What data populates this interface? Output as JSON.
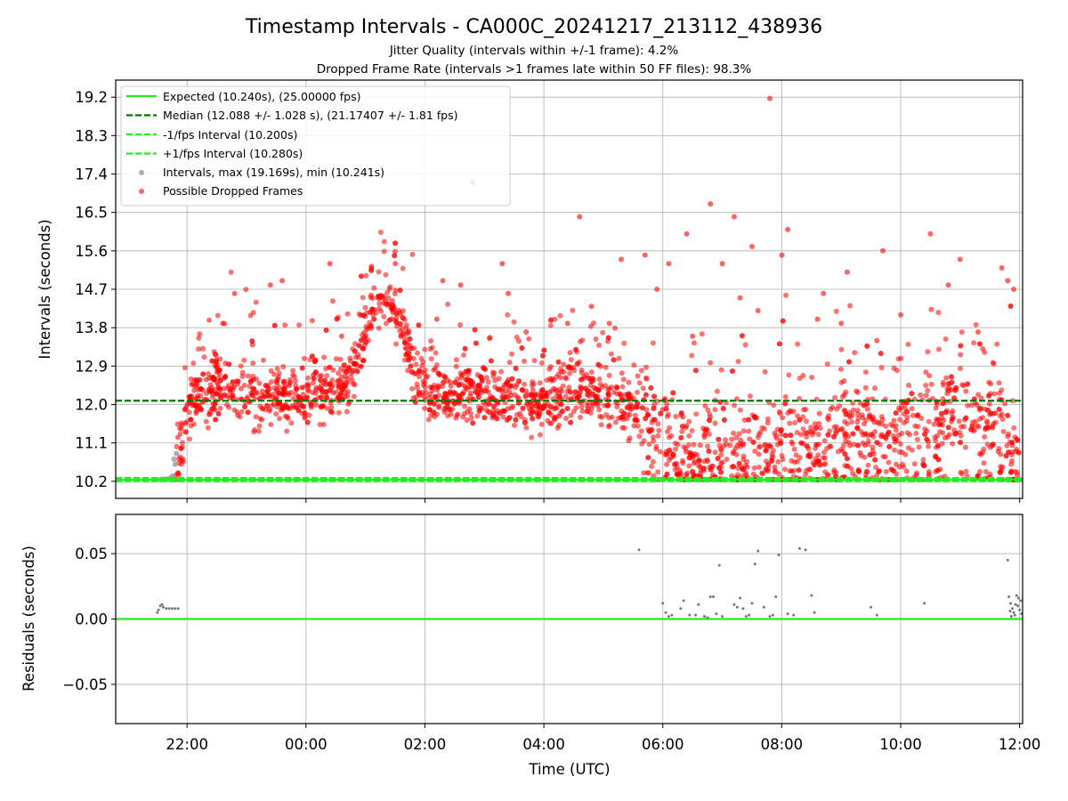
{
  "chart_data": [
    {
      "type": "scatter",
      "title": "Timestamp Intervals - CA000C_20241217_213112_438936",
      "subtitle_lines": [
        "Jitter Quality (intervals within +/-1 frame): 4.2%",
        "Dropped Frame Rate (intervals >1 frames late within 50 FF files): 98.3%"
      ],
      "ylabel": "Intervals (seconds)",
      "ylim": [
        9.8,
        19.6
      ],
      "yticks": [
        10.2,
        11.1,
        12.0,
        12.9,
        13.8,
        14.7,
        15.6,
        16.5,
        17.4,
        18.3,
        19.2
      ],
      "ytick_labels": [
        "10.2",
        "11.1",
        "12.0",
        "12.9",
        "13.8",
        "14.7",
        "15.6",
        "16.5",
        "17.4",
        "18.3",
        "19.2"
      ],
      "grid": true,
      "legend_position": "top-left",
      "reference_lines": [
        {
          "name": "Expected (10.240s), (25.00000 fps)",
          "y": 10.24,
          "style": "solid",
          "color": "#22ee22"
        },
        {
          "name": "Median (12.088 +/- 1.028 s), (21.17407 +/- 1.81 fps)",
          "y": 12.088,
          "style": "dashed",
          "color": "#007700"
        },
        {
          "name": "-1/fps Interval (10.200s)",
          "y": 10.2,
          "style": "dashed",
          "color": "#22ee22"
        },
        {
          "name": "+1/fps Interval (10.280s)",
          "y": 10.28,
          "style": "dashed",
          "color": "#22ee22"
        }
      ],
      "series": [
        {
          "name": "Intervals, max (19.169s), min (10.241s)",
          "color": "#999999",
          "points": [
            [
              21.55,
              10.24
            ],
            [
              21.6,
              10.25
            ],
            [
              21.65,
              10.25
            ],
            [
              21.7,
              10.27
            ],
            [
              21.75,
              10.32
            ],
            [
              21.8,
              10.6
            ],
            [
              21.82,
              10.85
            ],
            [
              21.78,
              10.72
            ]
          ]
        },
        {
          "name": "Possible Dropped Frames",
          "color": "#ff0000",
          "trend": [
            [
              21.8,
              10.3
            ],
            [
              21.95,
              11.5
            ],
            [
              22.1,
              12.1
            ],
            [
              22.4,
              12.3
            ],
            [
              22.8,
              12.3
            ],
            [
              23.2,
              12.1
            ],
            [
              23.7,
              12.2
            ],
            [
              24.1,
              12.2
            ],
            [
              24.4,
              12.3
            ],
            [
              24.8,
              12.6
            ],
            [
              24.95,
              13.5
            ],
            [
              25.1,
              14.1
            ],
            [
              25.4,
              14.3
            ],
            [
              25.6,
              13.9
            ],
            [
              25.8,
              12.8
            ],
            [
              26.0,
              12.3
            ],
            [
              26.5,
              12.1
            ],
            [
              27.0,
              12.2
            ],
            [
              27.5,
              12.2
            ],
            [
              27.8,
              12.0
            ],
            [
              28.2,
              12.1
            ],
            [
              28.6,
              12.3
            ],
            [
              29.0,
              12.1
            ],
            [
              29.4,
              11.9
            ],
            [
              29.7,
              11.6
            ],
            [
              30.0,
              11.1
            ],
            [
              30.3,
              11.0
            ],
            [
              30.6,
              10.9
            ],
            [
              31.0,
              10.8
            ],
            [
              31.4,
              10.9
            ],
            [
              31.8,
              10.9
            ],
            [
              32.1,
              10.9
            ],
            [
              32.4,
              11.1
            ],
            [
              32.8,
              11.3
            ],
            [
              33.2,
              11.2
            ],
            [
              33.5,
              11.1
            ],
            [
              33.8,
              11.0
            ],
            [
              34.2,
              11.2
            ],
            [
              34.6,
              11.6
            ],
            [
              34.9,
              12.0
            ],
            [
              35.2,
              11.8
            ],
            [
              35.5,
              11.6
            ],
            [
              35.8,
              11.2
            ],
            [
              35.95,
              10.7
            ],
            [
              36.0,
              10.4
            ]
          ],
          "outliers": [
            [
              26.8,
              17.2
            ],
            [
              28.6,
              16.4
            ],
            [
              30.8,
              16.7
            ],
            [
              31.2,
              16.4
            ],
            [
              31.8,
              19.17
            ],
            [
              32.1,
              16.1
            ],
            [
              30.4,
              16.0
            ],
            [
              29.3,
              15.4
            ],
            [
              29.7,
              15.5
            ],
            [
              31.5,
              15.7
            ],
            [
              32.0,
              15.5
            ],
            [
              34.5,
              16.0
            ],
            [
              33.7,
              15.6
            ],
            [
              35.0,
              15.4
            ],
            [
              35.7,
              15.2
            ],
            [
              35.8,
              14.9
            ],
            [
              35.9,
              14.7
            ],
            [
              25.5,
              15.3
            ],
            [
              24.4,
              15.3
            ],
            [
              23.6,
              14.9
            ],
            [
              22.8,
              14.6
            ],
            [
              23.4,
              14.8
            ],
            [
              27.3,
              15.3
            ],
            [
              26.3,
              14.9
            ],
            [
              31.0,
              15.3
            ],
            [
              32.7,
              14.6
            ],
            [
              31.3,
              14.5
            ],
            [
              30.1,
              15.3
            ],
            [
              25.1,
              15.2
            ],
            [
              26.6,
              14.8
            ],
            [
              29.9,
              14.7
            ],
            [
              33.1,
              15.1
            ],
            [
              34.8,
              14.8
            ],
            [
              27.4,
              14.6
            ],
            [
              28.8,
              14.3
            ],
            [
              22.6,
              13.9
            ],
            [
              23.1,
              13.4
            ],
            [
              24.6,
              13.6
            ],
            [
              26.2,
              14.0
            ],
            [
              27.7,
              13.7
            ],
            [
              29.1,
              13.9
            ],
            [
              30.5,
              13.6
            ],
            [
              32.6,
              14.0
            ],
            [
              33.6,
              13.5
            ],
            [
              34.0,
              14.1
            ],
            [
              35.3,
              13.7
            ],
            [
              28.4,
              13.9
            ],
            [
              31.6,
              14.2
            ],
            [
              33.0,
              13.9
            ]
          ],
          "floor_y": 10.24,
          "floor_segment": [
            35.8,
            36.0
          ]
        }
      ],
      "xaxis_shared": {
        "label": "Time (UTC)",
        "xlim": [
          20.8,
          36.05
        ],
        "xticks": [
          22,
          24,
          26,
          28,
          30,
          32,
          34,
          36
        ],
        "xtick_labels": [
          "22:00",
          "00:00",
          "02:00",
          "04:00",
          "06:00",
          "08:00",
          "10:00",
          "12:00"
        ]
      }
    },
    {
      "type": "scatter",
      "ylabel": "Residuals (seconds)",
      "ylim": [
        -0.08,
        0.08
      ],
      "yticks": [
        -0.05,
        0.0,
        0.05
      ],
      "ytick_labels": [
        "−0.05",
        "0.00",
        "0.05"
      ],
      "grid": true,
      "reference_line": {
        "y": 0.0,
        "color": "#22ee22"
      },
      "series": [
        {
          "name": "",
          "color": "#777777",
          "points": [
            [
              21.5,
              0.005
            ],
            [
              21.55,
              0.01
            ],
            [
              21.6,
              0.009
            ],
            [
              21.65,
              0.008
            ],
            [
              21.7,
              0.008
            ],
            [
              21.75,
              0.008
            ],
            [
              21.8,
              0.008
            ],
            [
              21.85,
              0.008
            ],
            [
              21.52,
              0.007
            ],
            [
              21.58,
              0.011
            ],
            [
              29.6,
              0.053
            ],
            [
              30.0,
              0.012
            ],
            [
              30.05,
              0.005
            ],
            [
              30.1,
              0.002
            ],
            [
              30.15,
              0.003
            ],
            [
              30.3,
              0.008
            ],
            [
              30.35,
              0.014
            ],
            [
              30.45,
              0.003
            ],
            [
              30.55,
              0.003
            ],
            [
              30.6,
              0.011
            ],
            [
              30.7,
              0.002
            ],
            [
              30.75,
              0.001
            ],
            [
              30.8,
              0.017
            ],
            [
              30.85,
              0.017
            ],
            [
              30.9,
              0.004
            ],
            [
              30.95,
              0.041
            ],
            [
              31.0,
              0.002
            ],
            [
              31.2,
              0.011
            ],
            [
              31.25,
              0.009
            ],
            [
              31.3,
              0.016
            ],
            [
              31.35,
              0.008
            ],
            [
              31.4,
              0.002
            ],
            [
              31.45,
              0.003
            ],
            [
              31.5,
              0.012
            ],
            [
              31.55,
              0.042
            ],
            [
              31.6,
              0.052
            ],
            [
              31.7,
              0.009
            ],
            [
              31.8,
              0.002
            ],
            [
              31.85,
              0.003
            ],
            [
              31.9,
              0.017
            ],
            [
              31.95,
              0.049
            ],
            [
              32.1,
              0.004
            ],
            [
              32.2,
              0.003
            ],
            [
              32.3,
              0.054
            ],
            [
              32.4,
              0.053
            ],
            [
              32.5,
              0.018
            ],
            [
              32.55,
              0.005
            ],
            [
              34.4,
              0.012
            ],
            [
              33.5,
              0.009
            ],
            [
              33.6,
              0.003
            ],
            [
              35.8,
              0.045
            ],
            [
              35.82,
              0.017
            ],
            [
              35.85,
              0.012
            ],
            [
              35.88,
              0.008
            ],
            [
              35.9,
              0.005
            ],
            [
              35.92,
              0.003
            ],
            [
              35.95,
              0.018
            ],
            [
              35.97,
              0.01
            ],
            [
              36.0,
              0.007
            ],
            [
              36.02,
              0.014
            ],
            [
              35.86,
              0.002
            ],
            [
              35.93,
              0.011
            ],
            [
              35.98,
              0.016
            ],
            [
              36.03,
              0.004
            ],
            [
              35.84,
              0.006
            ]
          ]
        }
      ]
    }
  ]
}
